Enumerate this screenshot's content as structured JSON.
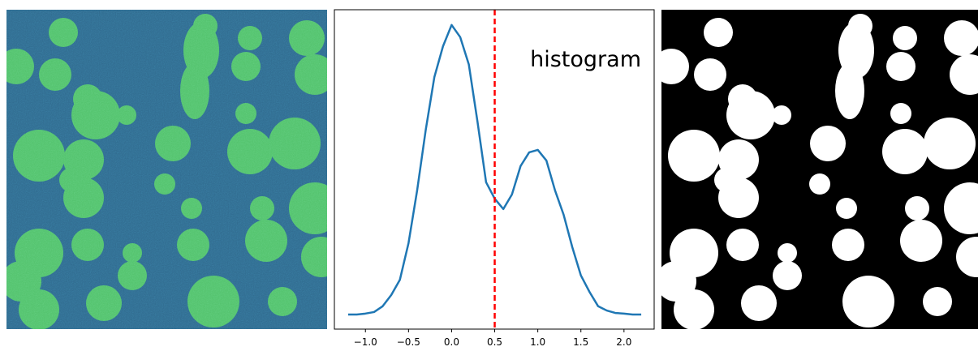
{
  "chart_data": {
    "type": "line",
    "annotation": "histogram",
    "x": [
      -1.2,
      -1.1,
      -1.0,
      -0.9,
      -0.8,
      -0.7,
      -0.6,
      -0.5,
      -0.4,
      -0.3,
      -0.2,
      -0.1,
      0.0,
      0.1,
      0.2,
      0.3,
      0.4,
      0.5,
      0.6,
      0.7,
      0.8,
      0.9,
      1.0,
      1.1,
      1.2,
      1.3,
      1.4,
      1.5,
      1.6,
      1.7,
      1.8,
      1.9,
      2.0,
      2.1,
      2.2
    ],
    "series": [
      {
        "color": "#1f77b4",
        "values": [
          0.0,
          0.0,
          0.003,
          0.008,
          0.027,
          0.064,
          0.114,
          0.234,
          0.407,
          0.606,
          0.779,
          0.88,
          0.95,
          0.91,
          0.82,
          0.633,
          0.434,
          0.38,
          0.346,
          0.394,
          0.487,
          0.532,
          0.54,
          0.505,
          0.407,
          0.327,
          0.221,
          0.128,
          0.074,
          0.027,
          0.013,
          0.005,
          0.003,
          0.0,
          0.0
        ]
      }
    ],
    "threshold": {
      "value": 0.5,
      "color": "red"
    },
    "xlim": [
      -1.36,
      2.35
    ],
    "ylim": [
      -0.048,
      1.0
    ],
    "xticks": [
      {
        "value": -1.0,
        "label": "−1.0"
      },
      {
        "value": -0.5,
        "label": "−0.5"
      },
      {
        "value": 0.0,
        "label": "0.0"
      },
      0.5,
      {
        "value": 1.0,
        "label": "1.0"
      },
      1.5,
      {
        "value": 2.0,
        "label": "2.0"
      }
    ]
  }
}
